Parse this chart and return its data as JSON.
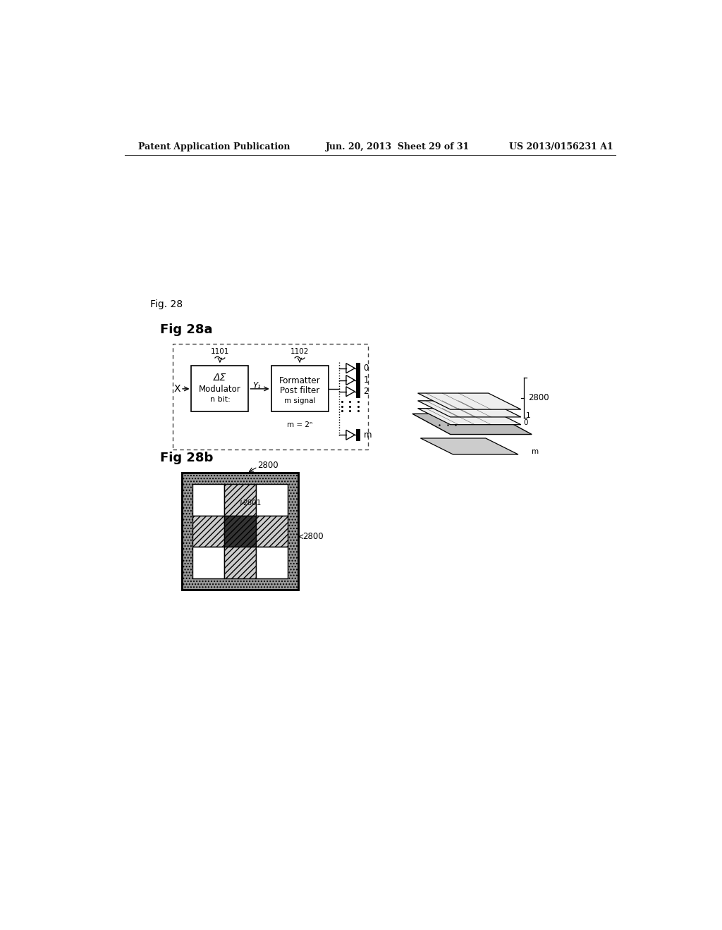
{
  "header_left": "Patent Application Publication",
  "header_mid": "Jun. 20, 2013  Sheet 29 of 31",
  "header_right": "US 2013/0156231 A1",
  "fig_label": "Fig. 28",
  "fig28a_label": "Fig 28a",
  "fig28b_label": "Fig 28b",
  "label_1101": "1101",
  "label_1102": "1102",
  "label_2800": "2800",
  "label_2801": "2801",
  "label_2800b": "2800",
  "box1_line1": "ΔΣ",
  "box1_line2": "Modulator",
  "box1_line3": "n bit:",
  "box2_line1": "Formatter",
  "box2_line2": "Post filter",
  "box2_line3": "m signal",
  "signal_x": "X",
  "signal_y1": "Y₁",
  "label_0": "0",
  "label_1": "1",
  "label_2": "2",
  "label_m": "m",
  "label_m_eq": "m = 2ⁿ",
  "bg_color": "#ffffff",
  "line_color": "#000000"
}
